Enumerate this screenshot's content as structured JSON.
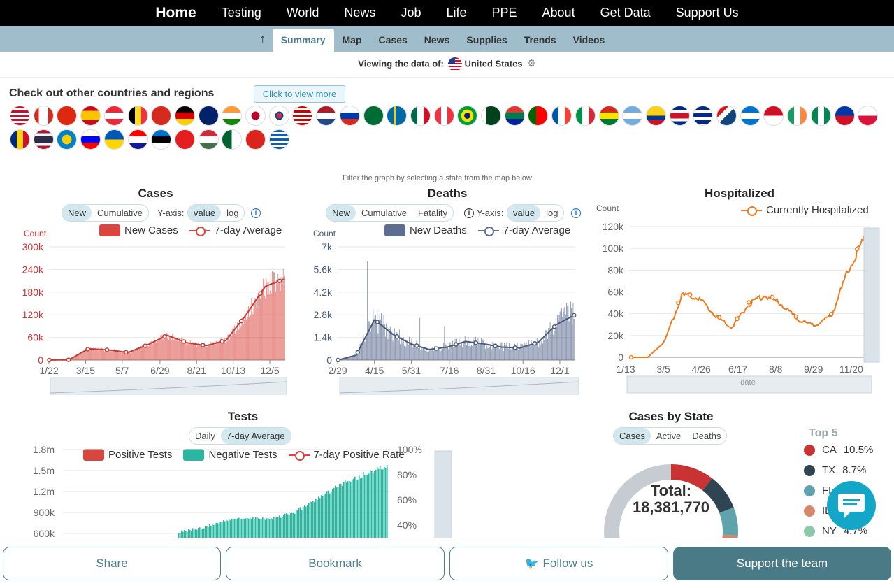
{
  "topnav": {
    "items": [
      "Home",
      "Testing",
      "World",
      "News",
      "Job",
      "Life",
      "PPE",
      "About",
      "Get Data",
      "Support Us"
    ]
  },
  "subnav": {
    "arrow": "↑",
    "tabs": [
      "Summary",
      "Map",
      "Cases",
      "News",
      "Supplies",
      "Trends",
      "Videos"
    ],
    "active": "Summary"
  },
  "viewing": {
    "label": "Viewing the data of:",
    "country": "United States",
    "gear": "⚙"
  },
  "countries": {
    "title": "Check out other countries and regions",
    "view_more": "Click to view more"
  },
  "filter_note": "Filter the graph by selecting a state from the map below",
  "cases_chart": {
    "title": "Cases",
    "modes": [
      "New",
      "Cumulative"
    ],
    "yaxis_label": "Y-axis:",
    "scales": [
      "value",
      "log"
    ],
    "ylabel": "Count",
    "legend": [
      "New Cases",
      "7-day Average"
    ],
    "yticks": [
      "300k",
      "240k",
      "180k",
      "120k",
      "60k",
      "0"
    ],
    "xticks": [
      "1/22",
      "3/15",
      "5/7",
      "6/29",
      "8/21",
      "10/13",
      "12/5"
    ]
  },
  "deaths_chart": {
    "title": "Deaths",
    "modes": [
      "New",
      "Cumulative",
      "Fatality"
    ],
    "yaxis_label": "Y-axis:",
    "scales": [
      "value",
      "log"
    ],
    "ylabel": "Count",
    "legend": [
      "New Deaths",
      "7-day Average"
    ],
    "yticks": [
      "7k",
      "5.6k",
      "4.2k",
      "2.8k",
      "1.4k",
      "0"
    ],
    "xticks": [
      "2/29",
      "4/15",
      "5/31",
      "7/16",
      "8/31",
      "10/16",
      "12/1"
    ]
  },
  "hosp_chart": {
    "title": "Hospitalized",
    "ylabel": "Count",
    "legend": [
      "Currently Hospitalized"
    ],
    "yticks": [
      "120k",
      "100k",
      "80k",
      "60k",
      "40k",
      "20k",
      "0"
    ],
    "xticks": [
      "1/13",
      "3/5",
      "4/26",
      "6/17",
      "8/8",
      "9/29",
      "11/20"
    ],
    "slider_label": "date"
  },
  "tests_chart": {
    "title": "Tests",
    "modes": [
      "Daily",
      "7-day Average"
    ],
    "legend": [
      "Positive Tests",
      "Negative Tests",
      "7-day Positive Rate"
    ],
    "yticks": [
      "1.8m",
      "1.5m",
      "1.2m",
      "900k",
      "600k"
    ],
    "y2ticks": [
      "100%",
      "80%",
      "60%",
      "40%"
    ]
  },
  "state_chart": {
    "title": "Cases by State",
    "modes": [
      "Cases",
      "Active",
      "Deaths"
    ],
    "total_label": "Total:",
    "total_value": "18,381,770",
    "top_title": "Top 5",
    "top": [
      {
        "state": "CA",
        "pct": "10.5%",
        "color": "#c93333"
      },
      {
        "state": "TX",
        "pct": "8.7%",
        "color": "#2f4554"
      },
      {
        "state": "FL",
        "pct": "",
        "color": "#5fa4ad"
      },
      {
        "state": "IL",
        "pct": "",
        "color": "#d6866a"
      },
      {
        "state": "NY",
        "pct": "4.7%",
        "color": "#8dc8a8"
      }
    ]
  },
  "bottom": {
    "share": "Share",
    "bookmark": "Bookmark",
    "follow": "Follow us",
    "support": "Support the team"
  },
  "colors": {
    "cases": "#d9453f",
    "deaths": "#5d6d91",
    "hosp": "#f07b1e",
    "negative": "#2bb6a0",
    "nav": "#000000",
    "subnav": "#9fbdca"
  },
  "chart_data": [
    {
      "type": "bar",
      "title": "Cases",
      "series": [
        {
          "name": "New Cases",
          "x": [
            "1/22",
            "3/15",
            "4/10",
            "5/7",
            "6/1",
            "6/29",
            "7/20",
            "8/21",
            "9/15",
            "10/13",
            "11/10",
            "12/5",
            "12/12"
          ],
          "values": [
            0,
            1000,
            32000,
            25000,
            21000,
            45000,
            68000,
            45000,
            40000,
            55000,
            125000,
            200000,
            240000
          ]
        },
        {
          "name": "7-day Average",
          "values": [
            0,
            800,
            30000,
            27000,
            20000,
            40000,
            66000,
            46000,
            38000,
            52000,
            118000,
            195000,
            215000
          ]
        }
      ],
      "ylabel": "Count",
      "ylim": [
        0,
        300000
      ]
    },
    {
      "type": "bar",
      "title": "Deaths",
      "series": [
        {
          "name": "New Deaths",
          "x": [
            "2/29",
            "3/25",
            "4/15",
            "5/10",
            "5/31",
            "6/20",
            "7/16",
            "8/10",
            "8/31",
            "9/25",
            "10/16",
            "11/10",
            "12/1",
            "12/10"
          ],
          "values": [
            0,
            400,
            2500,
            1600,
            1000,
            650,
            900,
            1200,
            1000,
            800,
            800,
            1200,
            2400,
            3000
          ]
        },
        {
          "name": "7-day Average",
          "values": [
            0,
            300,
            2500,
            1600,
            1000,
            650,
            800,
            1150,
            1000,
            800,
            750,
            1100,
            2200,
            2800
          ]
        }
      ],
      "ylabel": "Count",
      "ylim": [
        0,
        7000
      ]
    },
    {
      "type": "line",
      "title": "Hospitalized",
      "series": [
        {
          "name": "Currently Hospitalized",
          "x": [
            "1/13",
            "3/5",
            "3/25",
            "4/15",
            "4/26",
            "5/20",
            "6/17",
            "7/10",
            "7/25",
            "8/8",
            "9/1",
            "9/29",
            "10/20",
            "11/20",
            "12/10"
          ],
          "values": [
            0,
            0,
            15000,
            58000,
            57000,
            40000,
            28000,
            50000,
            59000,
            50000,
            35000,
            30000,
            40000,
            83000,
            115000
          ]
        }
      ],
      "ylabel": "Count",
      "ylim": [
        0,
        120000
      ]
    },
    {
      "type": "bar",
      "title": "Tests",
      "series": [
        {
          "name": "Negative Tests",
          "values": [
            620000,
            680000,
            780000,
            820000,
            800000,
            900000,
            1100000,
            1300000,
            1450000,
            1560000
          ]
        }
      ],
      "ylim": [
        600000,
        1800000
      ]
    },
    {
      "type": "pie",
      "title": "Cases by State",
      "categories": [
        "CA",
        "TX",
        "FL",
        "IL",
        "NY"
      ],
      "values": [
        10.5,
        8.7,
        0,
        0,
        4.7
      ]
    }
  ]
}
